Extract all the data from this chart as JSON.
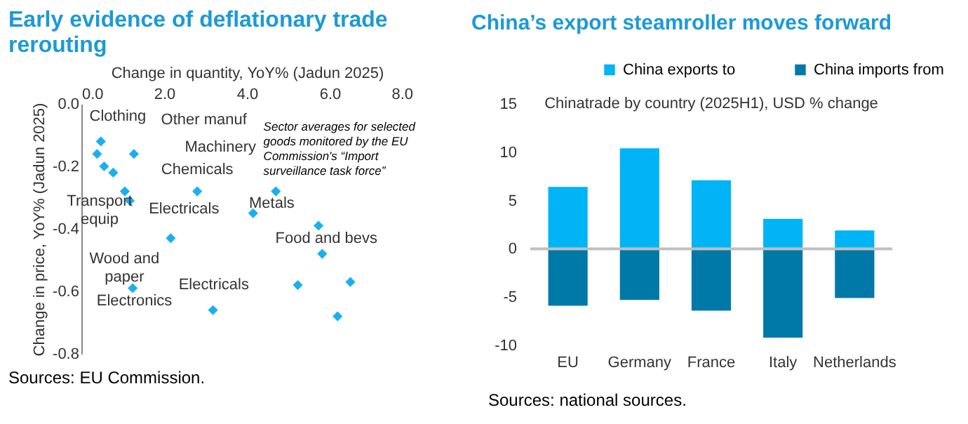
{
  "chart_data": [
    {
      "type": "scatter",
      "title": "Early evidence of deflationary trade rerouting",
      "xlabel": "Change in quantity, YoY% (Jadun 2025)",
      "ylabel": "Change in price, YoY% (Jadun 2025)",
      "x": [
        0.47,
        0.38,
        0.55,
        0.77,
        1.27,
        1.05,
        1.17,
        2.8,
        4.7,
        4.15,
        2.16,
        1.24,
        3.18,
        5.73,
        5.82,
        5.23,
        6.5,
        6.19
      ],
      "values": [
        -0.12,
        -0.16,
        -0.2,
        -0.22,
        -0.16,
        -0.28,
        -0.31,
        -0.28,
        -0.28,
        -0.35,
        -0.43,
        -0.59,
        -0.66,
        -0.39,
        -0.48,
        -0.58,
        -0.57,
        -0.68
      ],
      "color": "#1ab0f0",
      "marker": "diamond",
      "grid": false,
      "xlim": [
        0,
        8
      ],
      "xticks": [
        {
          "value": 0,
          "label": "0.0"
        },
        {
          "value": 2,
          "label": "2.0"
        },
        {
          "value": 4,
          "label": "4.0"
        },
        {
          "value": 6,
          "label": "6.0"
        },
        {
          "value": 8,
          "label": "8.0"
        }
      ],
      "ylim": [
        -0.8,
        0
      ],
      "yticks": [
        {
          "value": 0,
          "label": "0.0"
        },
        {
          "value": -0.2,
          "label": "-0.2"
        },
        {
          "value": -0.4,
          "label": "-0.4"
        },
        {
          "value": -0.6,
          "label": "-0.6"
        },
        {
          "value": -0.8,
          "label": "-0.8"
        }
      ],
      "annotations": [
        "Clothing",
        "Other manuf",
        "Machinery",
        "Chemicals",
        "Transport\nequip",
        "Electricals",
        "Wood and\npaper",
        "Electronics",
        "Electricals",
        "Metals",
        "Food and bevs",
        "Sector averages for selected\ngoods monitored by the EU\nCommission's “Import\nsurveillance task force”",
        "Sources: EU Commission."
      ]
    },
    {
      "type": "bar",
      "title": "China’s export steamroller moves forward",
      "subtitle": "Chinatrade by country (2025H1), USD % change",
      "categories": [
        "EU",
        "Germany",
        "France",
        "Italy",
        "Netherlands"
      ],
      "stacked": true,
      "series": [
        {
          "name": "China exports to",
          "color": "#00b4f5",
          "values": [
            6.4,
            10.4,
            7.1,
            3.1,
            1.9
          ]
        },
        {
          "name": "China imports from",
          "color": "#0079a8",
          "values": [
            -5.9,
            -5.3,
            -6.4,
            -9.2,
            -5.1
          ]
        }
      ],
      "ylim": [
        -10,
        15
      ],
      "yticks": [
        -10,
        -5,
        0,
        5,
        10,
        15
      ],
      "grid": false,
      "legend": "top",
      "ref_lines": [
        {
          "axis": "y",
          "value": 0,
          "color": "#bfbfbf"
        }
      ],
      "annotations": [
        "Sources: national sources."
      ]
    }
  ]
}
